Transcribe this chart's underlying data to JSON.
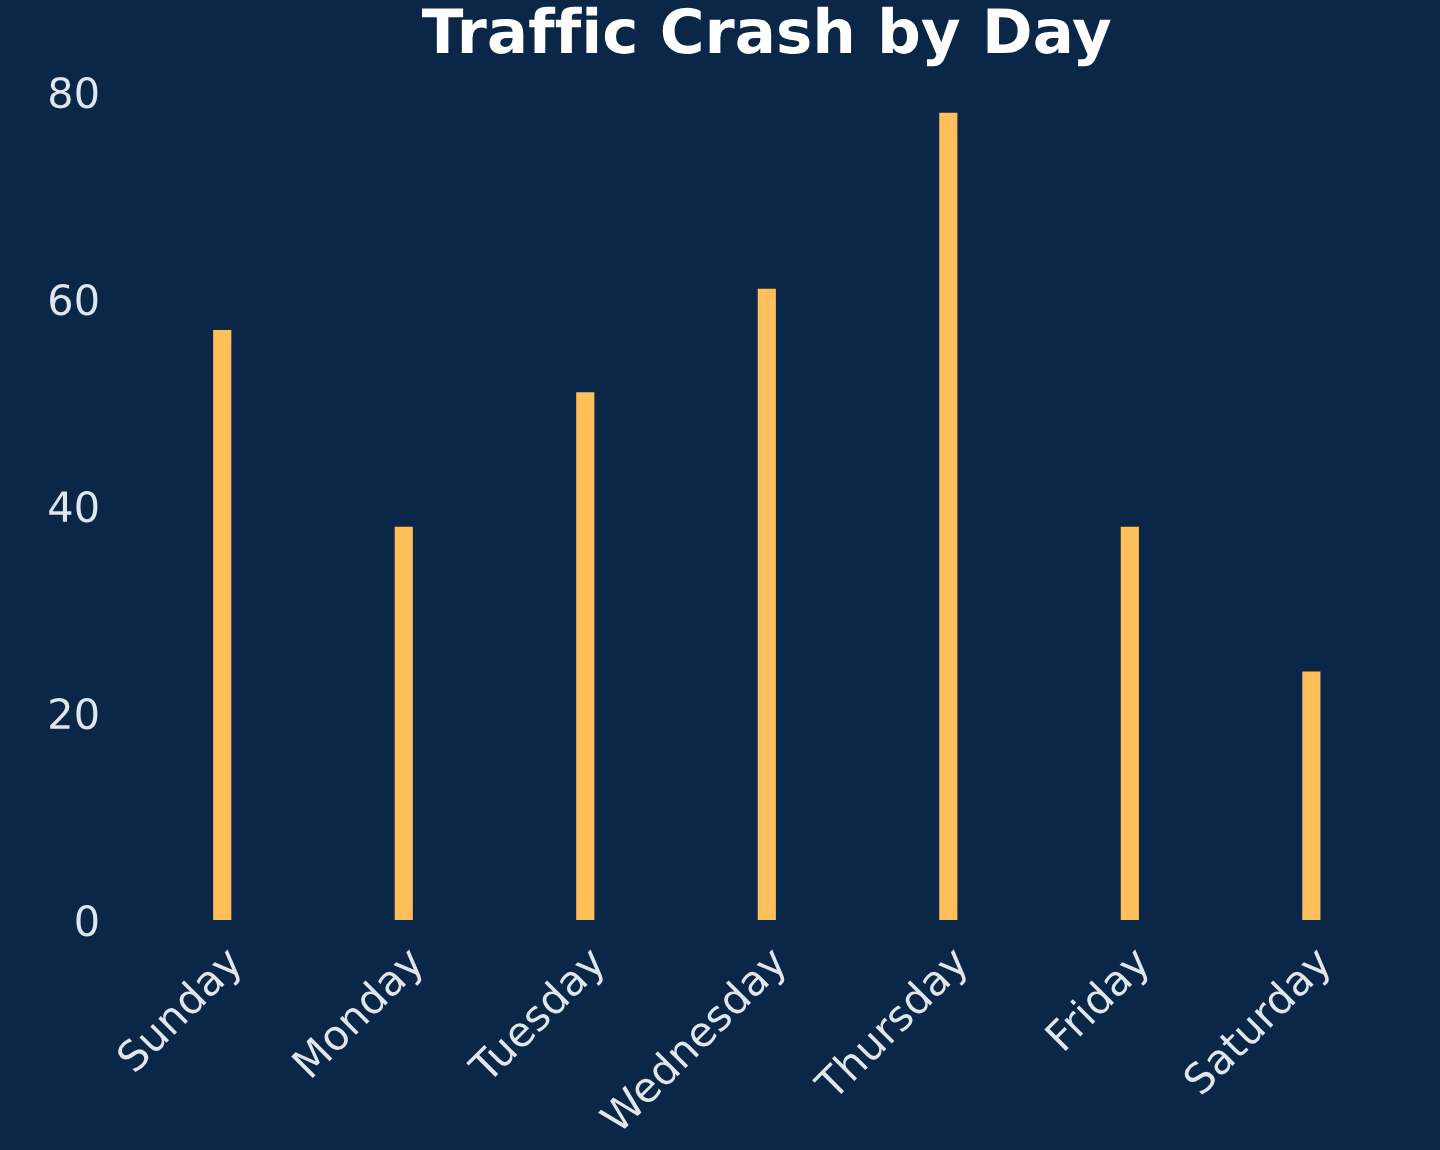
{
  "chart_data": {
    "type": "bar",
    "title": "Traffic Crash by Day",
    "categories": [
      "Sunday",
      "Monday",
      "Tuesday",
      "Wednesday",
      "Thursday",
      "Friday",
      "Saturday"
    ],
    "values": [
      57,
      38,
      51,
      61,
      78,
      38,
      24
    ],
    "color": "#ffbf5a",
    "ylim": [
      0,
      80
    ],
    "yticks": [
      0,
      20,
      40,
      60,
      80
    ],
    "grid": false,
    "legend": false
  }
}
